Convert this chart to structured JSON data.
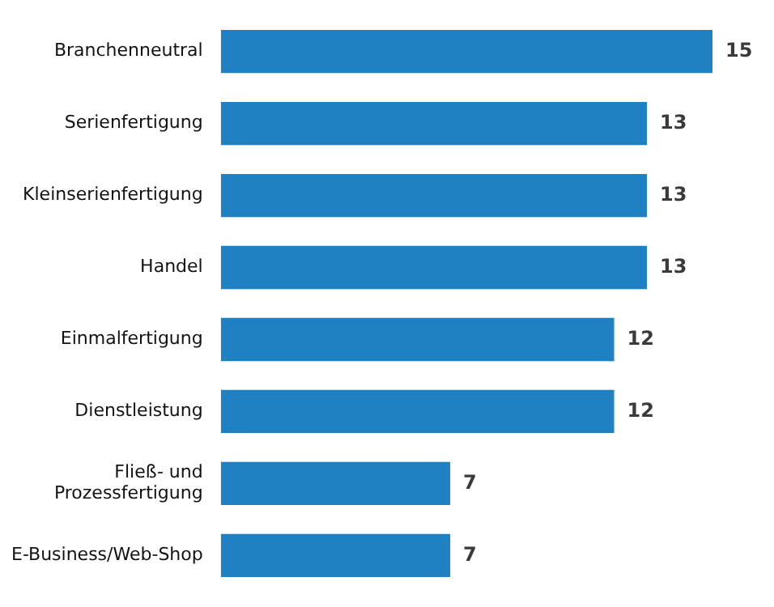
{
  "chart_data": {
    "type": "bar",
    "orientation": "horizontal",
    "categories": [
      "Branchenneutral",
      "Serienfertigung",
      "Kleinserienfertigung",
      "Handel",
      "Einmalfertigung",
      "Dienstleistung",
      "Fließ- und Prozessfertigung",
      "E-Business/Web-Shop"
    ],
    "values": [
      15,
      13,
      13,
      13,
      12,
      12,
      7,
      7
    ],
    "color": "#1f80c2",
    "data_labels": true
  }
}
